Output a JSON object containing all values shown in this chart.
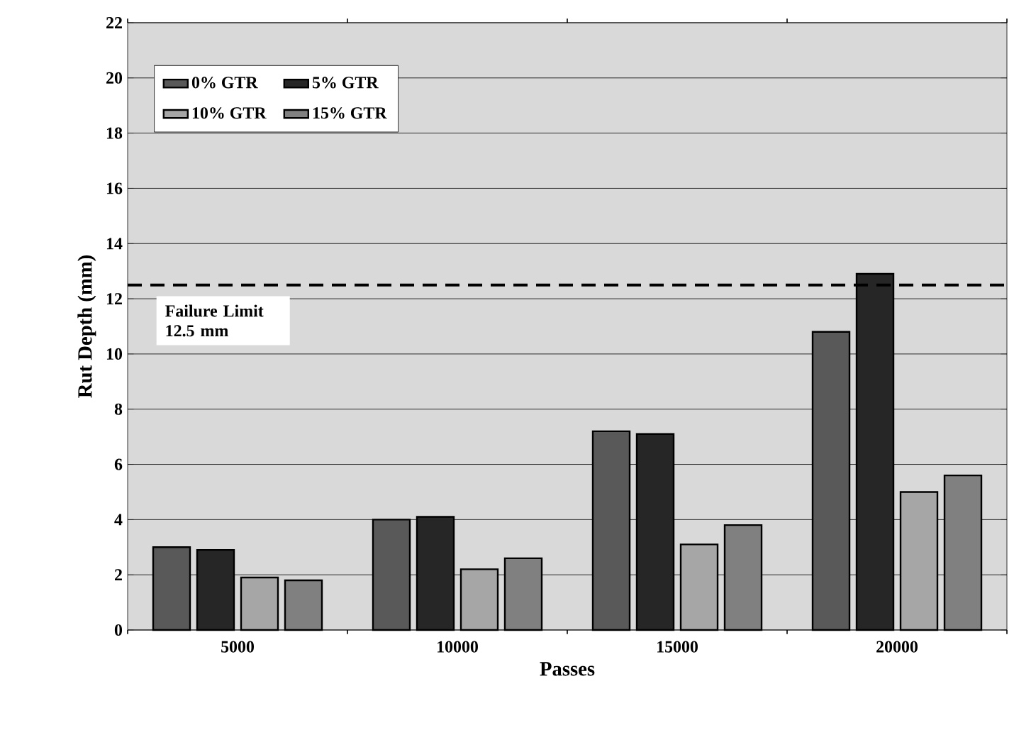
{
  "chart_data": {
    "type": "bar",
    "xlabel": "Passes",
    "ylabel": "Rut Depth (mm)",
    "categories": [
      "5000",
      "10000",
      "15000",
      "20000"
    ],
    "series": [
      {
        "name": "0% GTR",
        "color": "#595959",
        "values": [
          3.0,
          4.0,
          7.2,
          10.8
        ]
      },
      {
        "name": "5% GTR",
        "color": "#262626",
        "values": [
          2.9,
          4.1,
          7.1,
          12.9
        ]
      },
      {
        "name": "10% GTR",
        "color": "#a6a6a6",
        "values": [
          1.9,
          2.2,
          3.1,
          5.0
        ]
      },
      {
        "name": "15% GTR",
        "color": "#808080",
        "values": [
          1.8,
          2.6,
          3.8,
          5.6
        ]
      }
    ],
    "ylim": [
      0,
      22
    ],
    "yticks": [
      0,
      2,
      4,
      6,
      8,
      10,
      12,
      14,
      16,
      18,
      20,
      22
    ],
    "ref_lines": [
      {
        "axis": "y",
        "value": 12.5,
        "label": "Failure Limit 12.5 mm",
        "color": "#000000",
        "line_style": "dashed"
      }
    ],
    "grid": "y",
    "legend": "top left"
  }
}
